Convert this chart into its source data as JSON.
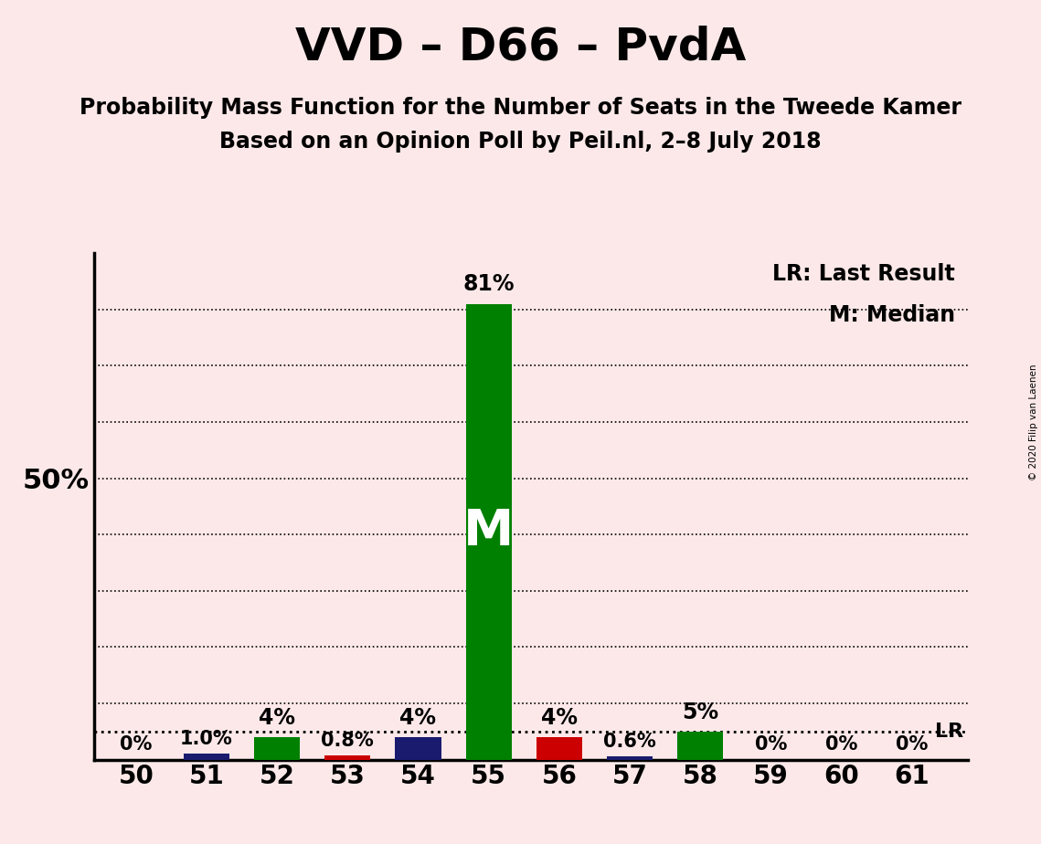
{
  "title": "VVD – D66 – PvdA",
  "subtitle1": "Probability Mass Function for the Number of Seats in the Tweede Kamer",
  "subtitle2": "Based on an Opinion Poll by Peil.nl, 2–8 July 2018",
  "copyright": "© 2020 Filip van Laenen",
  "background_color": "#fce8e8",
  "seats": [
    50,
    51,
    52,
    53,
    54,
    55,
    56,
    57,
    58,
    59,
    60,
    61
  ],
  "values": [
    0.0,
    1.0,
    4.0,
    0.8,
    4.0,
    81.0,
    4.0,
    0.6,
    5.0,
    0.0,
    0.0,
    0.0
  ],
  "bar_colors": [
    "#1a1a6e",
    "#1a1a6e",
    "#008000",
    "#cc0000",
    "#1a1a6e",
    "#008000",
    "#cc0000",
    "#1a1a6e",
    "#008000",
    "#1a1a6e",
    "#1a1a6e",
    "#1a1a6e"
  ],
  "labels": [
    "0%",
    "1.0%",
    "4%",
    "0.8%",
    "4%",
    "81%",
    "4%",
    "0.6%",
    "5%",
    "0%",
    "0%",
    "0%"
  ],
  "median_seat": 55,
  "lr_value": 5.0,
  "ylim": [
    0,
    90
  ],
  "ylabel_50_text": "50%",
  "title_fontsize": 36,
  "subtitle_fontsize": 17,
  "bar_width": 0.65,
  "legend_lr_text": "LR: Last Result",
  "legend_m_text": "M: Median",
  "lr_line_label": "LR"
}
